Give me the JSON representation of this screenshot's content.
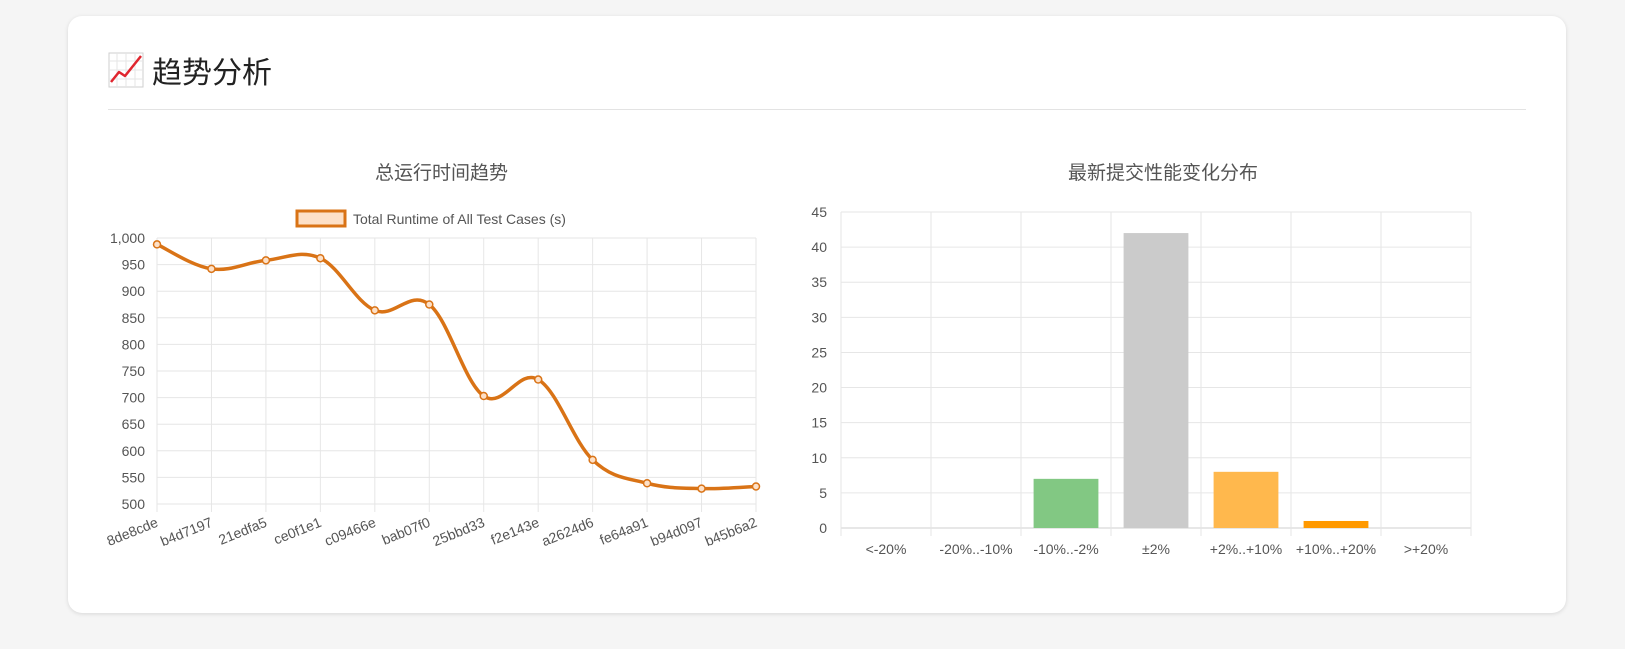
{
  "section": {
    "title": "趋势分析",
    "icon": "chart-increasing-icon"
  },
  "colors": {
    "line": "#d97316",
    "line_fill": "#fde0c7",
    "grid": "#e6e6e6",
    "bar_green": "#82c883",
    "bar_gray": "#cbcbcb",
    "bar_orange": "#ffb84d",
    "bar_dark_orange": "#ff9900"
  },
  "chart_data": [
    {
      "type": "line",
      "title": "总运行时间趋势",
      "legend": "top",
      "grid": true,
      "categories": [
        "8de8cde",
        "b4d7197",
        "21edfa5",
        "ce0f1e1",
        "c09466e",
        "bab07f0",
        "25bbd33",
        "f2e143e",
        "a2624d6",
        "fe64a91",
        "b94d097",
        "b45b6a2"
      ],
      "series": [
        {
          "name": "Total Runtime of All Test Cases (s)",
          "values": [
            988,
            942,
            958,
            962,
            864,
            875,
            703,
            734,
            583,
            539,
            529,
            533
          ]
        }
      ],
      "ylim": [
        500,
        1000
      ],
      "yticks": [
        "500",
        "550",
        "600",
        "650",
        "700",
        "750",
        "800",
        "850",
        "900",
        "950",
        "1,000"
      ]
    },
    {
      "type": "bar",
      "title": "最新提交性能变化分布",
      "grid": true,
      "categories": [
        "<-20%",
        "-20%..-10%",
        "-10%..-2%",
        "±2%",
        "+2%..+10%",
        "+10%..+20%",
        ">+20%"
      ],
      "values": [
        0,
        0,
        7,
        42,
        8,
        1,
        0
      ],
      "bar_colors": [
        "#82c883",
        "#82c883",
        "#82c883",
        "#cbcbcb",
        "#ffb84d",
        "#ff9900",
        "#ff9900"
      ],
      "ylim": [
        0,
        45
      ],
      "yticks": [
        "0",
        "5",
        "10",
        "15",
        "20",
        "25",
        "30",
        "35",
        "40",
        "45"
      ]
    }
  ]
}
